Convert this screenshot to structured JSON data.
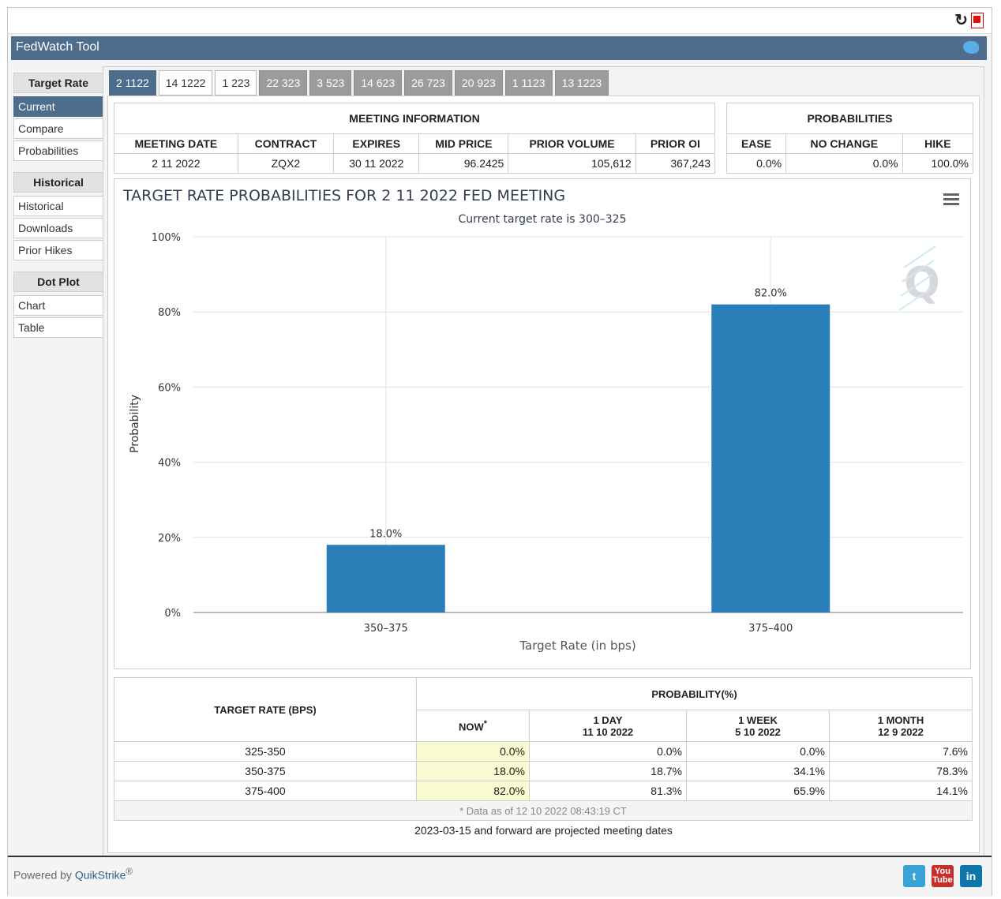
{
  "app": {
    "title": "FedWatch Tool"
  },
  "sidebar": {
    "sections": [
      {
        "label": "Target Rate",
        "items": [
          "Current",
          "Compare",
          "Probabilities"
        ]
      },
      {
        "label": "Historical",
        "items": [
          "Historical",
          "Downloads",
          "Prior Hikes"
        ]
      },
      {
        "label": "Dot Plot",
        "items": [
          "Chart",
          "Table"
        ]
      }
    ],
    "active": "Current"
  },
  "tabs": [
    "2 1122",
    "14 1222",
    "1 223",
    "22 323",
    "3 523",
    "14 623",
    "26 723",
    "20 923",
    "1 1123",
    "13 1223"
  ],
  "meeting_info": {
    "header": "MEETING INFORMATION",
    "columns": [
      "MEETING DATE",
      "CONTRACT",
      "EXPIRES",
      "MID PRICE",
      "PRIOR VOLUME",
      "PRIOR OI"
    ],
    "row": [
      "2 11 2022",
      "ZQX2",
      "30 11 2022",
      "96.2425",
      "105,612",
      "367,243"
    ]
  },
  "probabilities": {
    "header": "PROBABILITIES",
    "columns": [
      "EASE",
      "NO CHANGE",
      "HIKE"
    ],
    "row": [
      "0.0%",
      "0.0%",
      "100.0%"
    ]
  },
  "chart_data": {
    "type": "bar",
    "title": "TARGET RATE PROBABILITIES FOR 2 11 2022 FED MEETING",
    "subtitle": "Current target rate is 300–325",
    "xlabel": "Target Rate (in bps)",
    "ylabel": "Probability",
    "categories": [
      "350–375",
      "375–400"
    ],
    "values": [
      18.0,
      82.0
    ],
    "data_labels": [
      "18.0%",
      "82.0%"
    ],
    "ylim": [
      0,
      100
    ],
    "yticks": [
      "0%",
      "20%",
      "40%",
      "60%",
      "80%",
      "100%"
    ],
    "grid": true,
    "bar_color": "#2a7fb8"
  },
  "prob_table": {
    "rate_header": "TARGET RATE (BPS)",
    "prob_header": "PROBABILITY(%)",
    "col_now": "NOW",
    "col_now_mark": "*",
    "col_day": "1 DAY",
    "col_day_date": "11 10 2022",
    "col_week": "1 WEEK",
    "col_week_date": "5 10 2022",
    "col_month": "1 MONTH",
    "col_month_date": "12 9 2022",
    "rows": [
      [
        "325-350",
        "0.0%",
        "0.0%",
        "0.0%",
        "7.6%"
      ],
      [
        "350-375",
        "18.0%",
        "18.7%",
        "34.1%",
        "78.3%"
      ],
      [
        "375-400",
        "82.0%",
        "81.3%",
        "65.9%",
        "14.1%"
      ]
    ],
    "footnote": "* Data as of 12 10 2022 08:43:19 CT"
  },
  "projected_note": "2023-03-15 and forward are projected meeting dates",
  "footer": {
    "powered_by": "Powered by ",
    "brand": "QuikStrike",
    "reg": "®"
  },
  "social": {
    "twitter": "t",
    "youtube_top": "You",
    "youtube_bottom": "Tube",
    "linkedin": "in"
  }
}
